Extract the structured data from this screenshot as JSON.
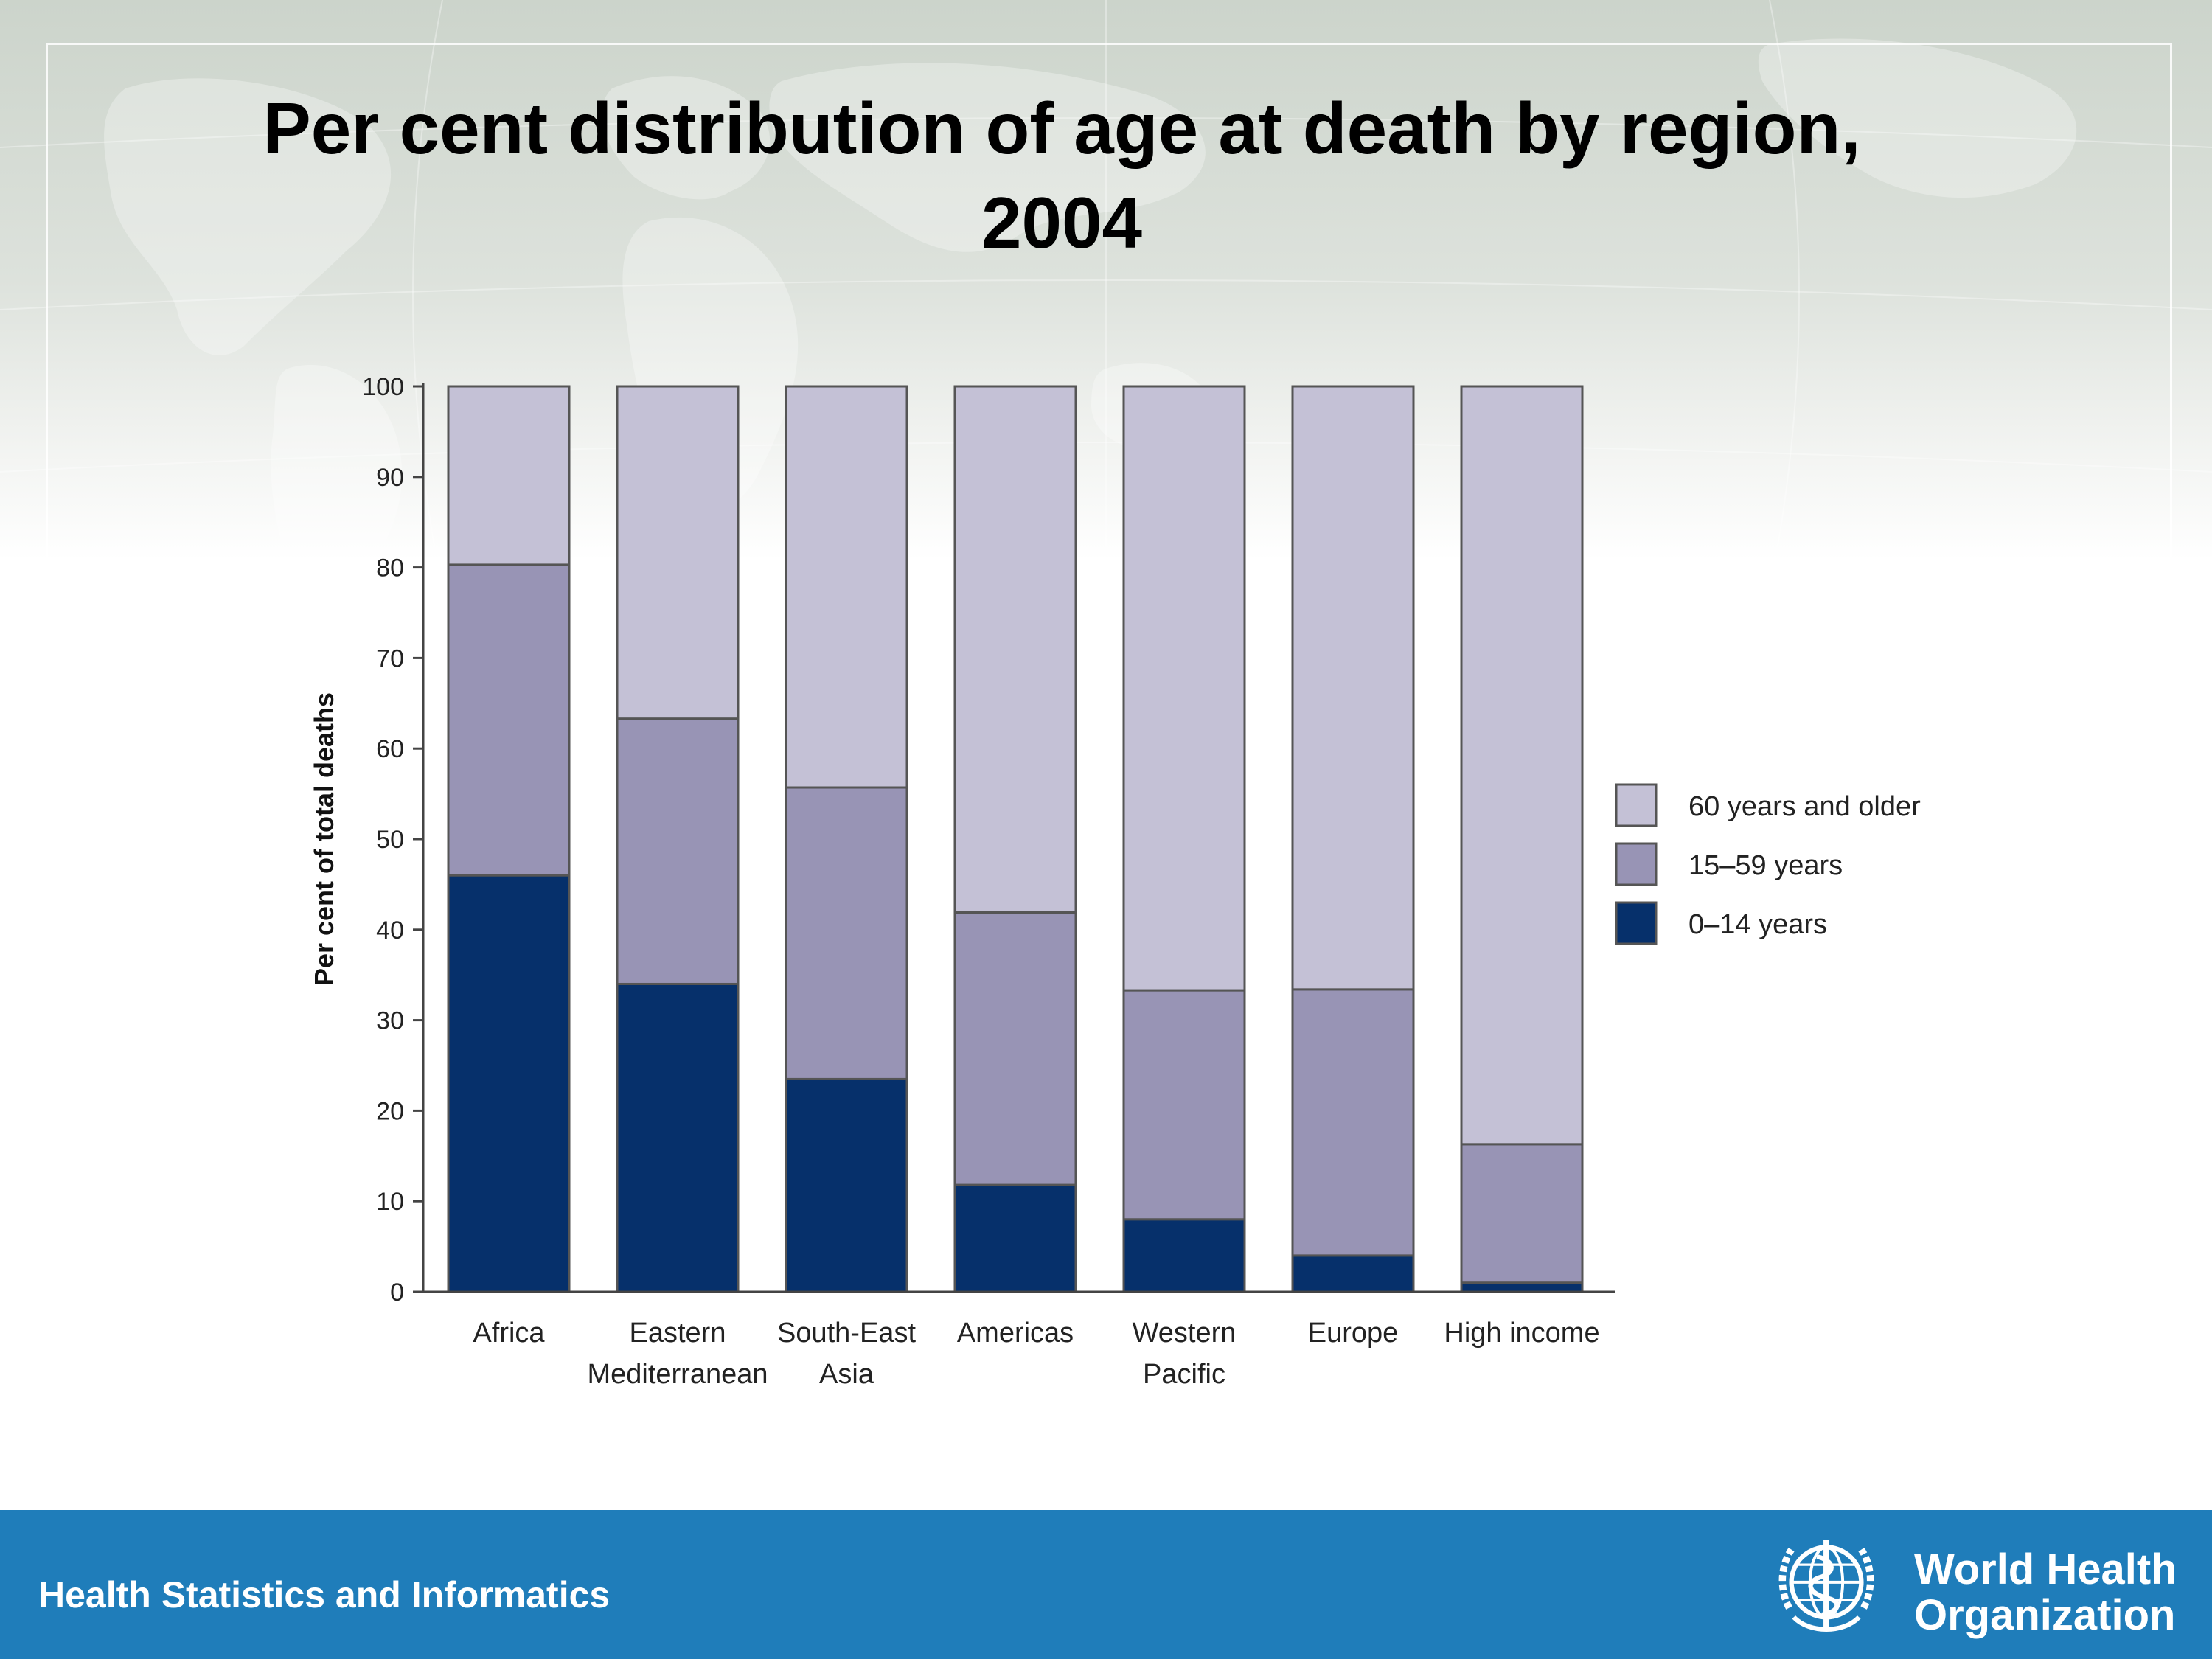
{
  "slide": {
    "title_line1": "Per cent distribution of age at death by region,",
    "title_line2": "2004",
    "footer_text": "Health Statistics and Informatics",
    "logo_line1": "World Health",
    "logo_line2": "Organization",
    "logo_icon": "who-emblem-icon"
  },
  "colors": {
    "band": "#1f7dba",
    "series_0_14": "#06306b",
    "series_15_59": "#9894b5",
    "series_60_plus": "#c4c1d6",
    "bar_outline": "#555555"
  },
  "chart_data": {
    "type": "bar",
    "stacked": true,
    "title": "",
    "xlabel": "",
    "ylabel": "Per cent of total deaths",
    "ylim": [
      0,
      100
    ],
    "yticks": [
      0,
      10,
      20,
      30,
      40,
      50,
      60,
      70,
      80,
      90,
      100
    ],
    "categories": [
      [
        "Africa"
      ],
      [
        "Eastern",
        "Mediterranean"
      ],
      [
        "South-East",
        "Asia"
      ],
      [
        "Americas"
      ],
      [
        "Western",
        "Pacific"
      ],
      [
        "Europe"
      ],
      [
        "High income"
      ]
    ],
    "series": [
      {
        "name": "0–14 years",
        "values": [
          46,
          34,
          23.5,
          11.8,
          8,
          4,
          1
        ]
      },
      {
        "name": "15–59 years",
        "values": [
          34.3,
          29.3,
          32.2,
          30.1,
          25.3,
          29.4,
          15.3
        ]
      },
      {
        "name": "60 years and older",
        "values": [
          19.7,
          36.7,
          44.3,
          58.1,
          66.7,
          66.6,
          83.7
        ]
      }
    ],
    "legend": {
      "placement": "right",
      "order": [
        "60 years and older",
        "15–59 years",
        "0–14 years"
      ]
    },
    "grid": false
  }
}
